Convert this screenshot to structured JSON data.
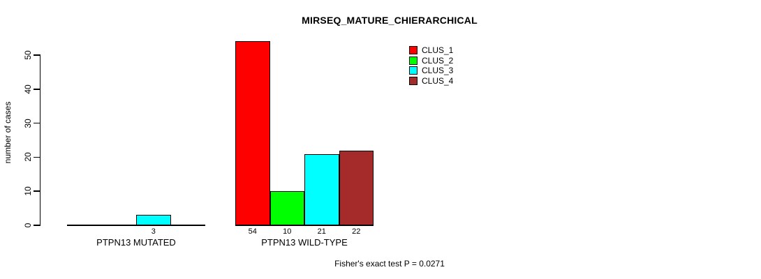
{
  "title": "MIRSEQ_MATURE_CHIERARCHICAL",
  "footnote": "Fisher's exact test P = 0.0271",
  "colors": {
    "clus_1": "#FF0000",
    "clus_2": "#00FF00",
    "clus_3": "#00FFFF",
    "clus_4": "#A52A2A",
    "axis": "#000000",
    "background": "#FFFFFF"
  },
  "chart_data": {
    "type": "bar",
    "title": "MIRSEQ_MATURE_CHIERARCHICAL",
    "xlabel": "",
    "ylabel": "number of cases",
    "ylim": [
      0,
      54
    ],
    "yticks": [
      0,
      10,
      20,
      30,
      40,
      50
    ],
    "grid": false,
    "legend_position": "top-right-inside",
    "categories": [
      "PTPN13 MUTATED",
      "PTPN13 WILD-TYPE"
    ],
    "series": [
      {
        "name": "CLUS_1",
        "color": "#FF0000",
        "values": [
          0,
          54
        ]
      },
      {
        "name": "CLUS_2",
        "color": "#00FF00",
        "values": [
          0,
          10
        ]
      },
      {
        "name": "CLUS_3",
        "color": "#00FFFF",
        "values": [
          3,
          21
        ]
      },
      {
        "name": "CLUS_4",
        "color": "#A52A2A",
        "values": [
          0,
          22
        ]
      }
    ],
    "bar_value_labels": {
      "shown": "only_positive",
      "mutated": [
        3
      ],
      "wild_type": [
        54,
        10,
        21,
        22
      ]
    },
    "annotation": "Fisher's exact test P = 0.0271"
  }
}
